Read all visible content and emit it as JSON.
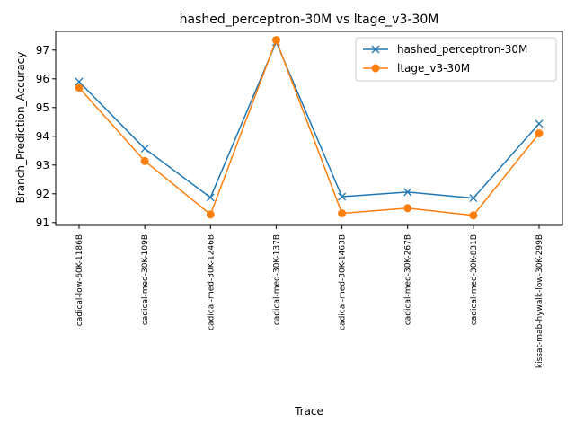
{
  "chart_data": {
    "type": "line",
    "title": "hashed_perceptron-30M vs ltage_v3-30M",
    "xlabel": "Trace",
    "ylabel": "Branch_Prediction_Accuracy",
    "categories": [
      "cadical-low-60K-1186B",
      "cadical-med-30K-109B",
      "cadical-med-30K-1246B",
      "cadical-med-30K-137B",
      "cadical-med-30K-1463B",
      "cadical-med-30K-267B",
      "cadical-med-30K-831B",
      "kissat-mab-hywalk-low-30K-299B"
    ],
    "ylim": [
      90.9,
      97.65
    ],
    "yticks": [
      91,
      92,
      93,
      94,
      95,
      96,
      97
    ],
    "grid": false,
    "legend_position": "top-right",
    "series": [
      {
        "name": "hashed_perceptron-30M",
        "color": "#1f77b4",
        "marker": "x",
        "values": [
          95.9,
          93.57,
          91.87,
          97.28,
          91.9,
          92.06,
          91.85,
          94.44
        ]
      },
      {
        "name": "ltage_v3-30M",
        "color": "#ff7f0e",
        "marker": "circle",
        "values": [
          95.69,
          93.14,
          91.28,
          97.35,
          91.32,
          91.5,
          91.25,
          94.1
        ]
      }
    ]
  }
}
